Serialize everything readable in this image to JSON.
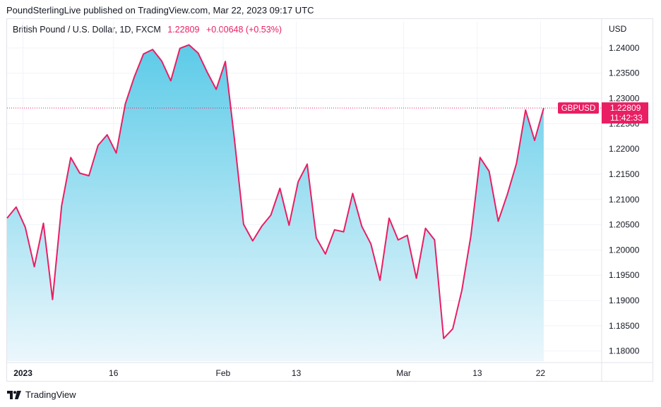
{
  "attribution": "PoundSterlingLive published on TradingView.com, Mar 22, 2023 09:17 UTC",
  "legend": {
    "symbol": "British Pound / U.S. Dollar, 1D, FXCM",
    "price": "1.22809",
    "change": "+0.00648 (+0.53%)"
  },
  "currency": "USD",
  "price_tag": {
    "ticker": "GBPUSD",
    "price": "1.22809",
    "countdown": "11:42:33"
  },
  "footer": {
    "brand": "TradingView"
  },
  "colors": {
    "line": "#e91e63",
    "area_top": "#5ccbe8",
    "area_bottom": "#ecf7fc",
    "grid": "#f0f3fa",
    "tag_bg": "#e91e63"
  },
  "chart_data": {
    "type": "area",
    "x_tick_labels": [
      {
        "label": "2023",
        "bold": true
      },
      {
        "label": "16"
      },
      {
        "label": "Feb"
      },
      {
        "label": "13"
      },
      {
        "label": "Mar"
      },
      {
        "label": "13"
      },
      {
        "label": "22"
      }
    ],
    "y_ticks": [
      "1.24000",
      "1.23500",
      "1.23000",
      "1.22500",
      "1.22000",
      "1.21500",
      "1.21000",
      "1.20500",
      "1.20000",
      "1.19500",
      "1.19000",
      "1.18500",
      "1.18000"
    ],
    "ylim": [
      1.178,
      1.2425
    ],
    "grid": true,
    "series": [
      {
        "values": [
          1.2063,
          1.2085,
          1.2045,
          1.1967,
          1.2053,
          1.1902,
          1.2088,
          1.2183,
          1.2152,
          1.2147,
          1.2207,
          1.2228,
          1.2192,
          1.2289,
          1.2343,
          1.2388,
          1.2397,
          1.2374,
          1.2335,
          1.2399,
          1.2406,
          1.239,
          1.2352,
          1.2318,
          1.2373,
          1.2219,
          1.2051,
          1.2018,
          1.2047,
          1.2069,
          1.2122,
          1.2049,
          1.2135,
          1.217,
          1.2024,
          1.1992,
          1.204,
          1.2036,
          1.2112,
          1.2047,
          1.2012,
          1.194,
          1.2063,
          1.202,
          1.2029,
          1.1944,
          1.2043,
          1.202,
          1.1825,
          1.1844,
          1.192,
          1.2029,
          1.2183,
          1.2156,
          1.2057,
          1.211,
          1.2171,
          1.2277,
          1.2217,
          1.2281
        ]
      }
    ]
  }
}
